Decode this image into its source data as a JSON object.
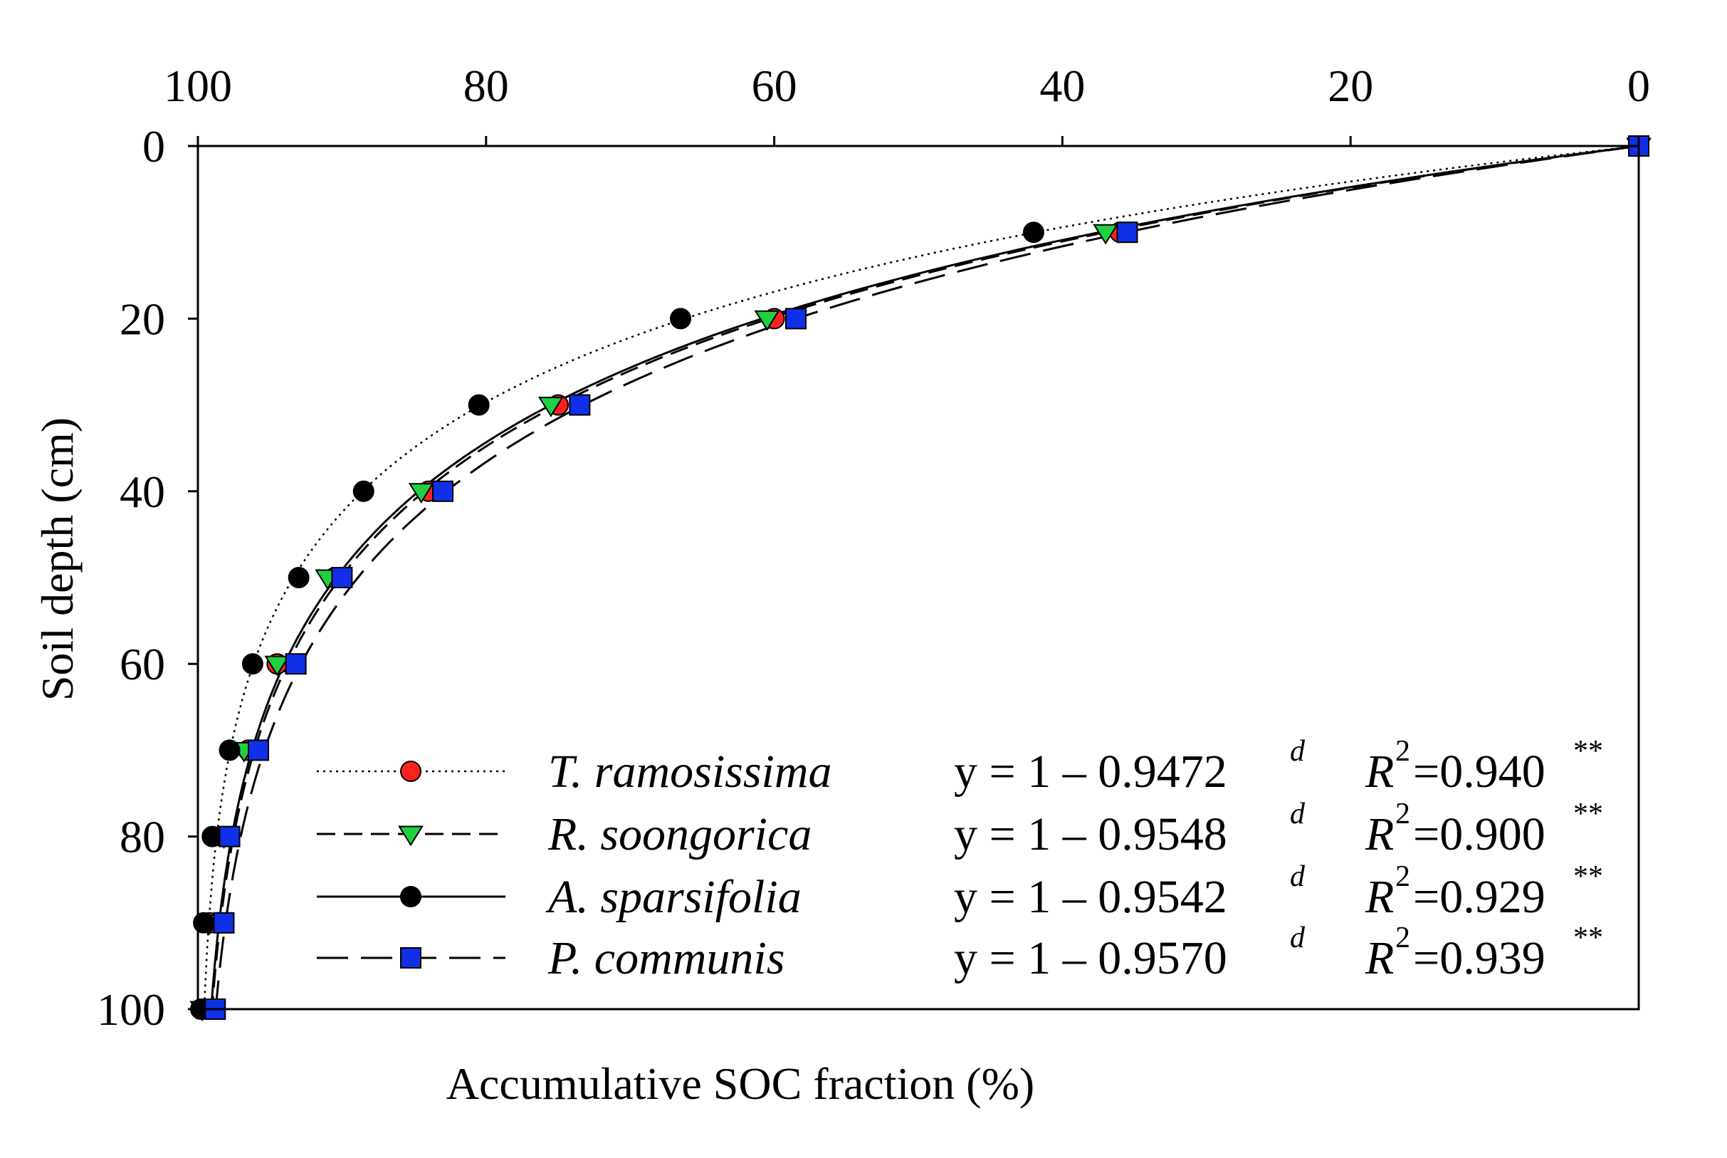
{
  "chart_data": {
    "type": "line",
    "title": "",
    "xlabel": "Accumulative SOC fraction (%)",
    "ylabel": "Soil depth (cm)",
    "x_axis_position": "top",
    "x_reversed": true,
    "y_reversed": true,
    "xlim": [
      100,
      0
    ],
    "ylim": [
      0,
      100
    ],
    "xticks": [
      "100",
      "80",
      "60",
      "40",
      "20",
      "0"
    ],
    "yticks": [
      "0",
      "20",
      "40",
      "60",
      "80",
      "100"
    ],
    "legend_position": "bottom-right",
    "series": [
      {
        "name": "T. ramosissima",
        "line_style": "dotted",
        "marker": "circle",
        "marker_color": "#ff2020",
        "equation": "y = 1 – 0.9472",
        "exponent": "d",
        "r2_label": "R",
        "r2_sup": "2",
        "r2_value": "=0.940",
        "significance": "**",
        "base": 0.9472,
        "depth": [
          0,
          10,
          20,
          30,
          40,
          50,
          60,
          70,
          80,
          90,
          100
        ],
        "soc_fraction": [
          0,
          36,
          60,
          75,
          84,
          90.5,
          94.5,
          96.5,
          98.3,
          99.2,
          99.6
        ]
      },
      {
        "name": "R. soongorica",
        "line_style": "dashed",
        "marker": "triangle-down",
        "marker_color": "#20d040",
        "equation": "y = 1 – 0.9548",
        "exponent": "d",
        "r2_label": "R",
        "r2_sup": "2",
        "r2_value": "=0.900",
        "significance": "**",
        "base": 0.9548,
        "depth": [
          0,
          10,
          20,
          30,
          40,
          50,
          60,
          70,
          80,
          90,
          100
        ],
        "soc_fraction": [
          0,
          37,
          60.5,
          75.5,
          84.5,
          91,
          94.5,
          96.8,
          98.2,
          99.2,
          99.7
        ]
      },
      {
        "name": "A. sparsifolia",
        "line_style": "solid",
        "marker": "circle",
        "marker_color": "#000000",
        "equation": "y = 1 – 0.9542",
        "exponent": "d",
        "r2_label": "R",
        "r2_sup": "2",
        "r2_value": "=0.929",
        "significance": "**",
        "base": 0.9542,
        "depth": [
          0,
          10,
          20,
          30,
          40,
          50,
          60,
          70,
          80,
          90,
          100
        ],
        "soc_fraction": [
          0,
          42,
          66.5,
          80.5,
          88.5,
          93,
          96.2,
          97.8,
          99,
          99.6,
          99.8
        ]
      },
      {
        "name": "P. communis",
        "line_style": "long-dash",
        "marker": "square",
        "marker_color": "#1030e8",
        "equation": "y = 1 – 0.9570",
        "exponent": "d",
        "r2_label": "R",
        "r2_sup": "2",
        "r2_value": "=0.939",
        "significance": "**",
        "base": 0.957,
        "depth": [
          0,
          10,
          20,
          30,
          40,
          50,
          60,
          70,
          80,
          90,
          100
        ],
        "soc_fraction": [
          0,
          35.5,
          58.5,
          73.5,
          83,
          90,
          93.2,
          95.8,
          97.8,
          98.2,
          98.8
        ]
      }
    ]
  }
}
